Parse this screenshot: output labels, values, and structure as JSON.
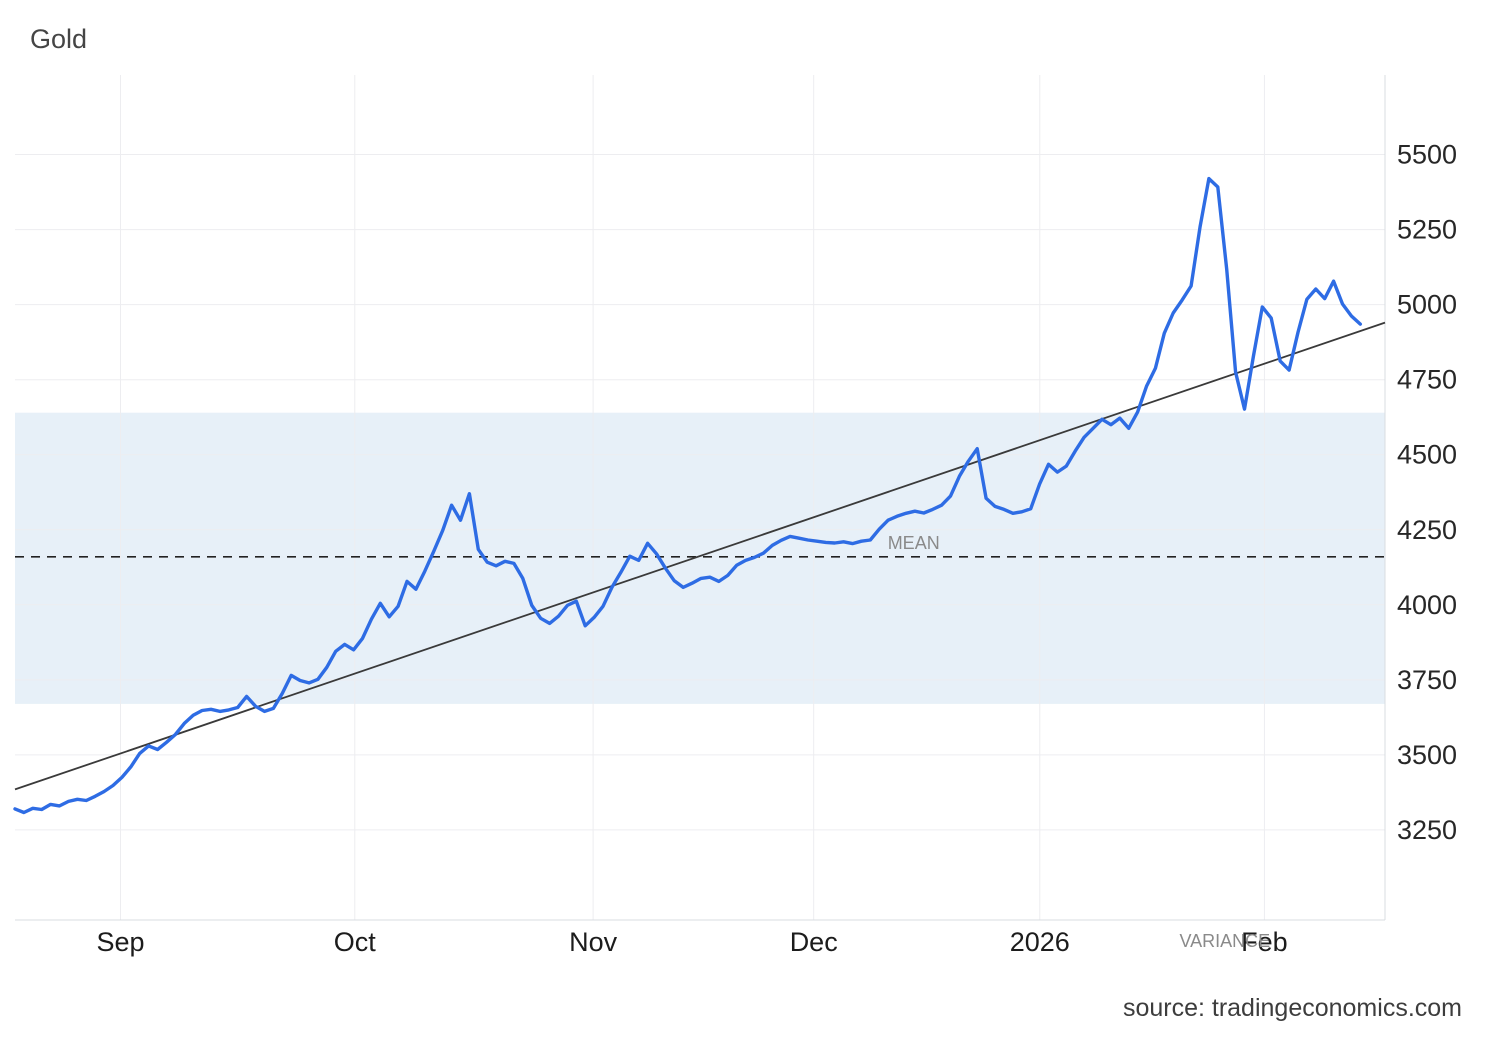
{
  "title": "Gold",
  "source": "source: tradingeconomics.com",
  "colors": {
    "line": "#2e6ce4",
    "band": "#e7f0f8",
    "trend": "#3a3a3a",
    "mean": "#222222",
    "grid": "#ededf0",
    "axis_border": "#d8dce1",
    "tick_text": "#272727",
    "month_text": "#1c1c1c",
    "muted_text": "#8a8a8a"
  },
  "chart_data": {
    "type": "line",
    "title": "Gold",
    "xlabel": "",
    "ylabel": "",
    "grid": true,
    "legend": "none",
    "ylim": [
      2950,
      5765
    ],
    "y_ticks": [
      3250,
      3500,
      3750,
      4000,
      4250,
      4500,
      4750,
      5000,
      5250,
      5500
    ],
    "x_ticks": [
      {
        "label": "Sep",
        "f": 0.077
      },
      {
        "label": "Oct",
        "f": 0.248
      },
      {
        "label": "Nov",
        "f": 0.422
      },
      {
        "label": "Dec",
        "f": 0.583
      },
      {
        "label": "2026",
        "f": 0.748
      },
      {
        "label": "Feb",
        "f": 0.912
      }
    ],
    "x_end_fraction": 0.982,
    "mean": {
      "label": "MEAN",
      "value": 4160,
      "label_f": 0.637
    },
    "variance_band": {
      "label": "VARIANCE",
      "from": 3670,
      "to": 4640,
      "label_f": 0.85
    },
    "trend_line": {
      "start_value": 3385,
      "end_value": 4940
    },
    "series": [
      {
        "name": "Gold price",
        "values": [
          3320,
          3308,
          3322,
          3318,
          3335,
          3330,
          3345,
          3352,
          3348,
          3362,
          3378,
          3398,
          3425,
          3460,
          3505,
          3530,
          3518,
          3542,
          3568,
          3605,
          3632,
          3648,
          3652,
          3645,
          3650,
          3658,
          3695,
          3662,
          3645,
          3655,
          3705,
          3765,
          3748,
          3740,
          3752,
          3792,
          3845,
          3868,
          3850,
          3888,
          3952,
          4005,
          3960,
          3995,
          4078,
          4052,
          4112,
          4178,
          4248,
          4332,
          4282,
          4370,
          4185,
          4142,
          4130,
          4145,
          4138,
          4088,
          3998,
          3955,
          3938,
          3962,
          3998,
          4012,
          3930,
          3958,
          3995,
          4058,
          4108,
          4162,
          4148,
          4205,
          4170,
          4122,
          4080,
          4058,
          4072,
          4088,
          4092,
          4078,
          4098,
          4132,
          4148,
          4158,
          4172,
          4198,
          4215,
          4228,
          4222,
          4216,
          4212,
          4208,
          4206,
          4210,
          4204,
          4212,
          4216,
          4252,
          4282,
          4295,
          4305,
          4312,
          4306,
          4318,
          4332,
          4362,
          4428,
          4478,
          4520,
          4355,
          4328,
          4318,
          4305,
          4310,
          4320,
          4402,
          4468,
          4442,
          4462,
          4512,
          4558,
          4588,
          4618,
          4600,
          4622,
          4588,
          4642,
          4728,
          4788,
          4905,
          4972,
          5015,
          5062,
          5258,
          5420,
          5392,
          5118,
          4775,
          4652,
          4828,
          4992,
          4955,
          4812,
          4782,
          4908,
          5018,
          5052,
          5020,
          5078,
          5002,
          4962,
          4935
        ]
      }
    ]
  }
}
